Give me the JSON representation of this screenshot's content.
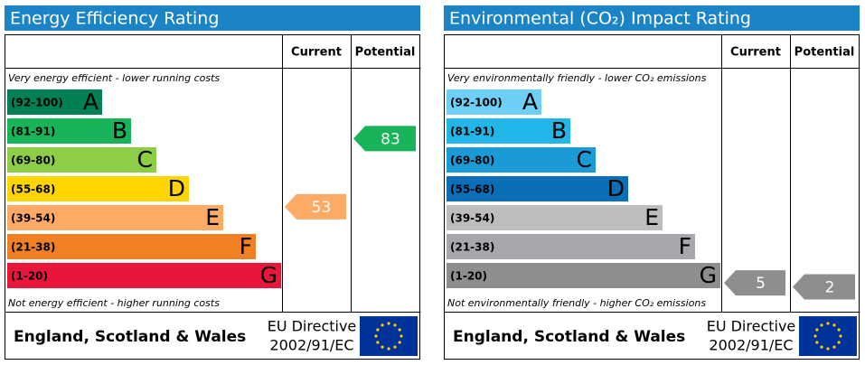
{
  "panels": [
    {
      "title": "Energy Efficiency Rating",
      "columns": [
        "Current",
        "Potential"
      ],
      "top_note": "Very energy efficient - lower running costs",
      "bottom_note": "Not energy efficient - higher running costs",
      "bands": [
        {
          "range": "(92-100)",
          "letter": "A",
          "color": "#008054"
        },
        {
          "range": "(81-91)",
          "letter": "B",
          "color": "#19b459"
        },
        {
          "range": "(69-80)",
          "letter": "C",
          "color": "#8dce46"
        },
        {
          "range": "(55-68)",
          "letter": "D",
          "color": "#ffd500"
        },
        {
          "range": "(39-54)",
          "letter": "E",
          "color": "#fcaa65"
        },
        {
          "range": "(21-38)",
          "letter": "F",
          "color": "#ef8023"
        },
        {
          "range": "(1-20)",
          "letter": "G",
          "color": "#e9153b"
        }
      ],
      "current": 53,
      "potential": 83,
      "region": "England, Scotland & Wales",
      "directive": [
        "EU Directive",
        "2002/91/EC"
      ]
    },
    {
      "title": "Environmental (CO₂) Impact Rating",
      "columns": [
        "Current",
        "Potential"
      ],
      "top_note": "Very environmentally friendly - lower CO₂ emissions",
      "bottom_note": "Not environmentally friendly - higher CO₂ emissions",
      "bands": [
        {
          "range": "(92-100)",
          "letter": "A",
          "color": "#6dcff6"
        },
        {
          "range": "(81-91)",
          "letter": "B",
          "color": "#22b5e8"
        },
        {
          "range": "(69-80)",
          "letter": "C",
          "color": "#1a9bd7"
        },
        {
          "range": "(55-68)",
          "letter": "D",
          "color": "#0b6fb8"
        },
        {
          "range": "(39-54)",
          "letter": "E",
          "color": "#bbbdbf"
        },
        {
          "range": "(21-38)",
          "letter": "F",
          "color": "#a6a8ab"
        },
        {
          "range": "(1-20)",
          "letter": "G",
          "color": "#8c8e90"
        }
      ],
      "current": 5,
      "potential": 2,
      "region": "England, Scotland & Wales",
      "directive": [
        "EU Directive",
        "2002/91/EC"
      ]
    }
  ]
}
